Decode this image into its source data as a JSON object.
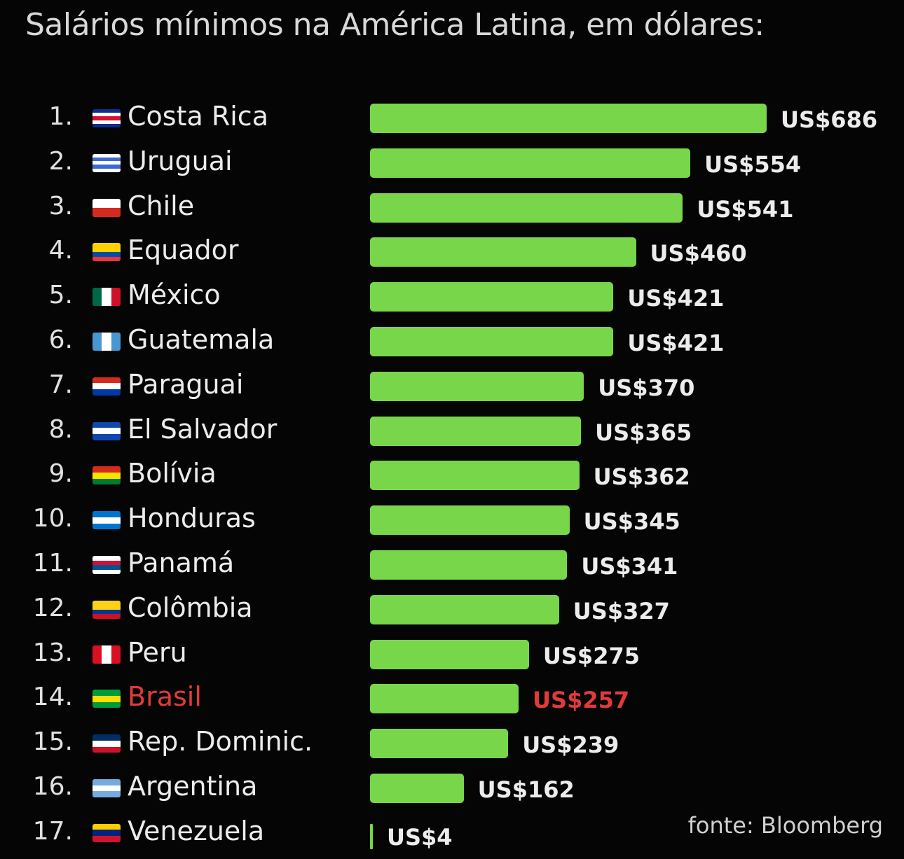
{
  "chart_data": {
    "type": "bar",
    "orientation": "horizontal",
    "title": "Salários mínimos na América Latina, em dólares:",
    "source": "fonte: Bloomberg",
    "value_prefix": "US$",
    "xlim": [
      0,
      686
    ],
    "grid": false,
    "legend": "none",
    "highlight_color": "#e23a3a",
    "bar_color": "#78d64b",
    "rows": [
      {
        "rank": "1.",
        "country": "Costa Rica",
        "value": 686,
        "label": "US$686",
        "flag": [
          "#0a2d8f",
          "#ffffff",
          "#d21034",
          "#ffffff",
          "#0a2d8f"
        ],
        "highlight": false
      },
      {
        "rank": "2.",
        "country": "Uruguai",
        "value": 554,
        "label": "US$554",
        "flag": [
          "#ffffff",
          "#3c6ad1",
          "#ffffff",
          "#3c6ad1",
          "#ffffff"
        ],
        "highlight": false
      },
      {
        "rank": "3.",
        "country": "Chile",
        "value": 541,
        "label": "US$541",
        "flag": [
          "#ffffff",
          "#d52b1e"
        ],
        "highlight": false
      },
      {
        "rank": "4.",
        "country": "Equador",
        "value": 460,
        "label": "US$460",
        "flag": [
          "#ffd100",
          "#ffd100",
          "#034ea2",
          "#ef3340"
        ],
        "highlight": false
      },
      {
        "rank": "5.",
        "country": "México",
        "value": 421,
        "label": "US$421",
        "flag": [
          "#006847",
          "#ffffff",
          "#ce1126"
        ],
        "vertical": true,
        "highlight": false
      },
      {
        "rank": "6.",
        "country": "Guatemala",
        "value": 421,
        "label": "US$421",
        "flag": [
          "#4997d0",
          "#ffffff",
          "#4997d0"
        ],
        "vertical": true,
        "highlight": false
      },
      {
        "rank": "7.",
        "country": "Paraguai",
        "value": 370,
        "label": "US$370",
        "flag": [
          "#d52b1e",
          "#ffffff",
          "#0038a8"
        ],
        "highlight": false
      },
      {
        "rank": "8.",
        "country": "El Salvador",
        "value": 365,
        "label": "US$365",
        "flag": [
          "#0f47af",
          "#ffffff",
          "#0f47af"
        ],
        "highlight": false
      },
      {
        "rank": "9.",
        "country": "Bolívia",
        "value": 362,
        "label": "US$362",
        "flag": [
          "#d52b1e",
          "#f9e300",
          "#007934"
        ],
        "highlight": false
      },
      {
        "rank": "10.",
        "country": "Honduras",
        "value": 345,
        "label": "US$345",
        "flag": [
          "#0073cf",
          "#ffffff",
          "#0073cf"
        ],
        "highlight": false
      },
      {
        "rank": "11.",
        "country": "Panamá",
        "value": 341,
        "label": "US$341",
        "flag": [
          "#ffffff",
          "#d21034",
          "#005293",
          "#ffffff"
        ],
        "highlight": false
      },
      {
        "rank": "12.",
        "country": "Colômbia",
        "value": 327,
        "label": "US$327",
        "flag": [
          "#fcd116",
          "#fcd116",
          "#003893",
          "#ce1126"
        ],
        "highlight": false
      },
      {
        "rank": "13.",
        "country": "Peru",
        "value": 275,
        "label": "US$275",
        "flag": [
          "#d91023",
          "#ffffff",
          "#d91023"
        ],
        "vertical": true,
        "highlight": false
      },
      {
        "rank": "14.",
        "country": "Brasil",
        "value": 257,
        "label": "US$257",
        "flag": [
          "#009c3b",
          "#ffdf00",
          "#009c3b"
        ],
        "highlight": true
      },
      {
        "rank": "15.",
        "country": "Rep. Dominic.",
        "value": 239,
        "label": "US$239",
        "flag": [
          "#002d62",
          "#ffffff",
          "#ce1126"
        ],
        "highlight": false
      },
      {
        "rank": "16.",
        "country": "Argentina",
        "value": 162,
        "label": "US$162",
        "flag": [
          "#74acdf",
          "#ffffff",
          "#74acdf"
        ],
        "highlight": false
      },
      {
        "rank": "17.",
        "country": "Venezuela",
        "value": 4,
        "label": "US$4",
        "flag": [
          "#ffcc00",
          "#00247d",
          "#cf142b"
        ],
        "highlight": false
      }
    ]
  }
}
